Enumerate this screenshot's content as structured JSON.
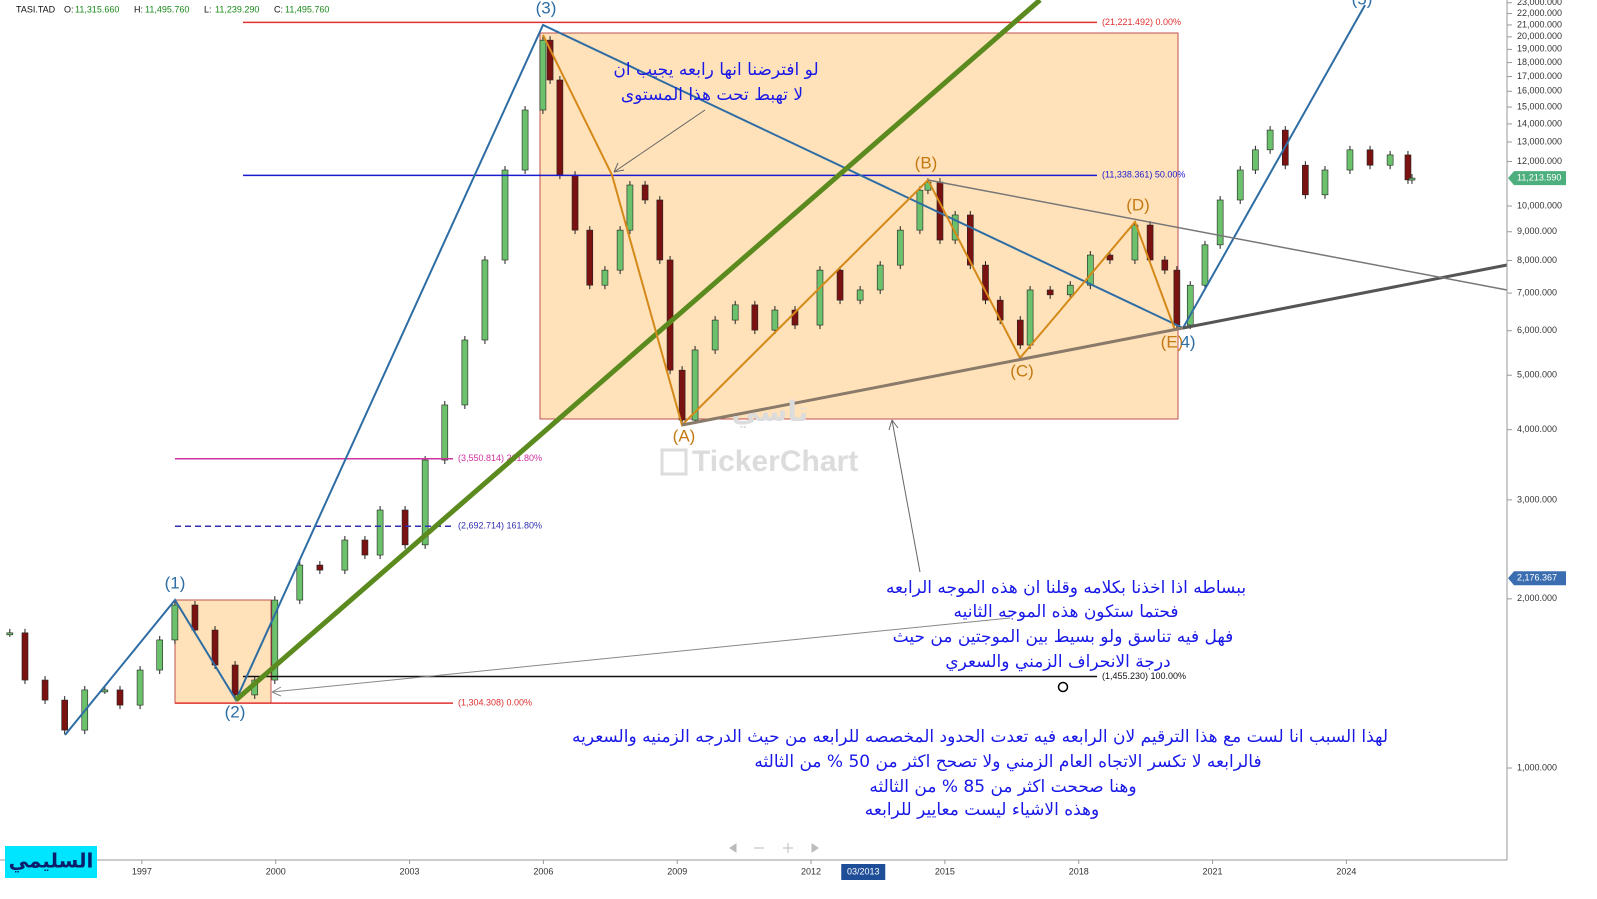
{
  "chart_data": {
    "type": "candlestick",
    "header": {
      "symbol": "TASI.TAD",
      "fields": [
        {
          "key": "O:",
          "value": {
            "value": 11315.66,
            "label": "11,315.660"
          }
        },
        {
          "key": "H:",
          "value": {
            "value": 11495.76,
            "label": "11,495.760"
          }
        },
        {
          "key": "L:",
          "value": {
            "value": 11239.29,
            "label": "11,239.290"
          }
        },
        {
          "key": "C:",
          "value": {
            "value": 11495.76,
            "label": "11,495.760"
          }
        }
      ]
    },
    "x": [
      1994.04,
      1994.38,
      1994.83,
      1995.27,
      1995.72,
      1996.17,
      1996.51,
      1996.96,
      1997.4,
      1997.74,
      1998.19,
      1998.64,
      1999.09,
      1999.53,
      1999.98,
      2000.54,
      2000.99,
      2001.55,
      2002.0,
      2002.34,
      2002.9,
      2003.35,
      2003.79,
      2004.24,
      2004.69,
      2005.14,
      2005.59,
      2005.99,
      2006.15,
      2006.37,
      2006.71,
      2007.04,
      2007.38,
      2007.72,
      2007.94,
      2008.28,
      2008.61,
      2008.84,
      2009.11,
      2009.4,
      2009.85,
      2010.3,
      2010.74,
      2011.19,
      2011.64,
      2012.2,
      2012.65,
      2013.1,
      2013.55,
      2014.0,
      2014.44,
      2014.62,
      2014.89,
      2015.23,
      2015.57,
      2015.91,
      2016.24,
      2016.69,
      2016.91,
      2017.36,
      2017.81,
      2018.26,
      2018.7,
      2019.26,
      2019.6,
      2019.93,
      2020.2,
      2020.5,
      2020.83,
      2021.17,
      2021.62,
      2021.96,
      2022.29,
      2022.63,
      2023.08,
      2023.52,
      2024.08,
      2024.53,
      2024.98,
      2025.38,
      2025.47
    ],
    "series": [
      {
        "name": "TASI.TAD",
        "up_color": "#6cc26c",
        "down_color": "#7a1212",
        "values": [
          1740,
          1434,
          1321,
          1168,
          1377,
          1377,
          1294,
          1494,
          1690,
          1950,
          1760,
          1525,
          1349,
          1434,
          1990,
          2297,
          2250,
          2545,
          2393,
          2878,
          2495,
          3532,
          4426,
          5776,
          8017,
          11590,
          14820,
          19730,
          16760,
          11350,
          9060,
          7230,
          7690,
          9060,
          10900,
          10250,
          8017,
          5104,
          4160,
          5545,
          6267,
          6670,
          6015,
          6530,
          6140,
          7690,
          6800,
          7090,
          7850,
          9060,
          10670,
          11030,
          8700,
          9640,
          7850,
          6800,
          6267,
          5658,
          7090,
          6950,
          7230,
          8180,
          8017,
          9250,
          8017,
          7690,
          6140,
          7230,
          8530,
          10250,
          11590,
          12590,
          13650,
          11820,
          10470,
          11590,
          12590,
          11820,
          12330,
          11130,
          11214
        ]
      }
    ],
    "log_scale": true,
    "xlim": [
      1993.82,
      2027.6
    ],
    "xticks": [
      1997,
      2000,
      2003,
      2006,
      2009,
      2012,
      2015,
      2018,
      2021,
      2024
    ],
    "ylim": [
      686,
      23260
    ],
    "yticks": [
      {
        "value": 1000,
        "label": "1,000.000"
      },
      {
        "value": 2000,
        "label": "2,000.000"
      },
      {
        "value": 3000,
        "label": "3,000.000"
      },
      {
        "value": 4000,
        "label": "4,000.000"
      },
      {
        "value": 5000,
        "label": "5,000.000"
      },
      {
        "value": 6000,
        "label": "6,000.000"
      },
      {
        "value": 7000,
        "label": "7,000.000"
      },
      {
        "value": 8000,
        "label": "8,000.000"
      },
      {
        "value": 9000,
        "label": "9,000.000"
      },
      {
        "value": 10000,
        "label": "10,000.000"
      },
      {
        "value": 12000,
        "label": "12,000.000"
      },
      {
        "value": 13000,
        "label": "13,000.000"
      },
      {
        "value": 14000,
        "label": "14,000.000"
      },
      {
        "value": 15000,
        "label": "15,000.000"
      },
      {
        "value": 16000,
        "label": "16,000.000"
      },
      {
        "value": 17000,
        "label": "17,000.000"
      },
      {
        "value": 18000,
        "label": "18,000.000"
      },
      {
        "value": 19000,
        "label": "19,000.000"
      },
      {
        "value": 20000,
        "label": "20,000.000"
      },
      {
        "value": 21000,
        "label": "21,000.000"
      },
      {
        "value": 22000,
        "label": "22,000.000"
      },
      {
        "value": 23000,
        "label": "23,000.000"
      }
    ],
    "price_tags": [
      {
        "value": 11213.59,
        "label": "11,213.590",
        "color": "#4caf7d"
      },
      {
        "value": 2176.367,
        "label": "2,176.367",
        "color": "#3b6eb0"
      }
    ],
    "crosshair": {
      "value": 2013.17,
      "label": "03/2013"
    },
    "levels": [
      {
        "value": 21221.492,
        "label": "(21,221.492) 0.00%",
        "color": "#e03030",
        "dashed": false
      },
      {
        "value": 11338.361,
        "label": "(11,338.361) 50.00%",
        "color": "#1a1ad0",
        "dashed": false
      },
      {
        "value": 3550.814,
        "label": "(3,550.814) 261.80%",
        "color": "#d030a0",
        "dashed": false
      },
      {
        "value": 2692.714,
        "label": "(2,692.714) 161.80%",
        "color": "#3030b0",
        "dashed": true
      },
      {
        "value": 1455.23,
        "label": "(1,455.230) 100.00%",
        "color": "#111111",
        "dashed": false
      },
      {
        "value": 1304.308,
        "label": "(1,304.308) 0.00%",
        "color": "#e03030",
        "dashed": false
      }
    ],
    "wave_labels": [
      "(1)",
      "(2)",
      "(3)",
      "(A)",
      "(B)",
      "(C)",
      "(D)",
      "(E)",
      "4)",
      "(5)"
    ],
    "annotations": {
      "note1": [
        "لو افترضنا انها رابعه يجيب ان",
        "لا تهبط تحت هذا المستوى"
      ],
      "note2": [
        "ببساطه اذا اخذنا بكلامه وقلنا ان هذه الموجه الرابعه",
        "فحتما ستكون هذه الموجه الثانيه",
        "فهل فيه تناسق ولو بسيط بين الموجتين من حيث",
        "درجة الانحراف الزمني والسعري"
      ],
      "note3": [
        "لهذا السبب انا لست مع هذا الترقيم  لان الرابعه فيه تعدت الحدود المخصصه للرابعه من حيث الدرجه الزمنيه والسعريه",
        "فالرابعه لا تكسر الاتجاه العام الزمني ولا تصحح اكثر من 50 % من الثالثه",
        "وهنا صححت اكثر من 85 % من الثالثه",
        "وهذه الاشياء ليست معايير للرابعه"
      ]
    },
    "watermark": [
      "تاسي",
      "TickerChart"
    ],
    "author": "السليمي"
  }
}
